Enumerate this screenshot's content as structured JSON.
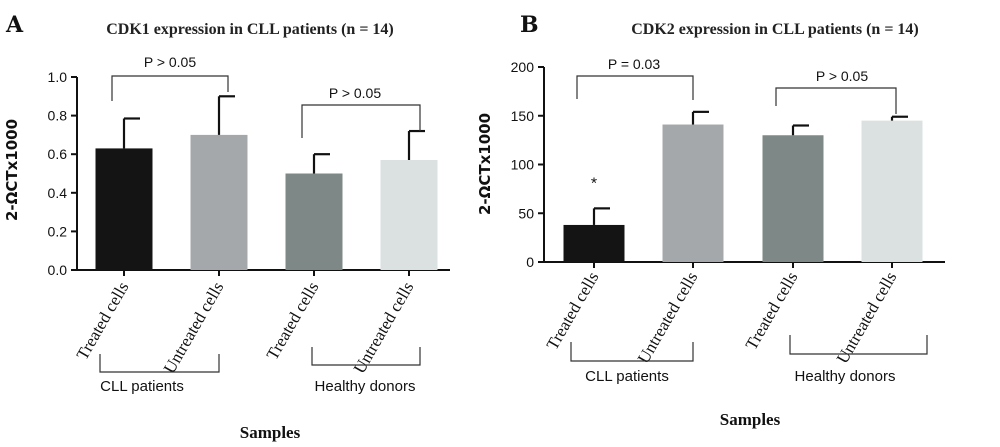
{
  "chart_data": [
    {
      "panel": "A",
      "type": "bar",
      "title": "CDK1 expression in CLL patients (n = 14)",
      "ylabel": "2-ΩCTx1000",
      "xlabel": "Samples",
      "ylim": [
        0,
        1.0
      ],
      "yticks": [
        "0.0",
        "0.2",
        "0.4",
        "0.6",
        "0.8",
        "1.0"
      ],
      "categories": [
        "Treated cells",
        "Untreated cells",
        "Treated cells",
        "Untreated cells"
      ],
      "values": [
        0.63,
        0.7,
        0.5,
        0.57
      ],
      "errors": [
        0.155,
        0.2,
        0.1,
        0.15
      ],
      "colors": [
        "#141414",
        "#a4a8ab",
        "#7e8886",
        "#dbe1e0"
      ],
      "groups": [
        "CLL patients",
        "Healthy donors"
      ],
      "comparisons": [
        "P > 0.05",
        "P > 0.05"
      ],
      "markers": [
        "",
        "",
        "",
        ""
      ]
    },
    {
      "panel": "B",
      "type": "bar",
      "title": "CDK2 expression in CLL patients (n = 14)",
      "ylabel": "2-ΩCTx1000",
      "xlabel": "Samples",
      "ylim": [
        0,
        200
      ],
      "yticks": [
        "0",
        "50",
        "100",
        "150",
        "200"
      ],
      "categories": [
        "Treated cells",
        "Untreated cells",
        "Treated cells",
        "Untreated cells"
      ],
      "values": [
        38,
        141,
        130,
        145
      ],
      "errors": [
        17,
        13,
        10,
        4
      ],
      "colors": [
        "#141414",
        "#a4a8ab",
        "#7e8886",
        "#dbe1e0"
      ],
      "groups": [
        "CLL patients",
        "Healthy donors"
      ],
      "comparisons": [
        "P = 0.03",
        "P > 0.05"
      ],
      "markers": [
        "*",
        "",
        "",
        ""
      ]
    }
  ]
}
